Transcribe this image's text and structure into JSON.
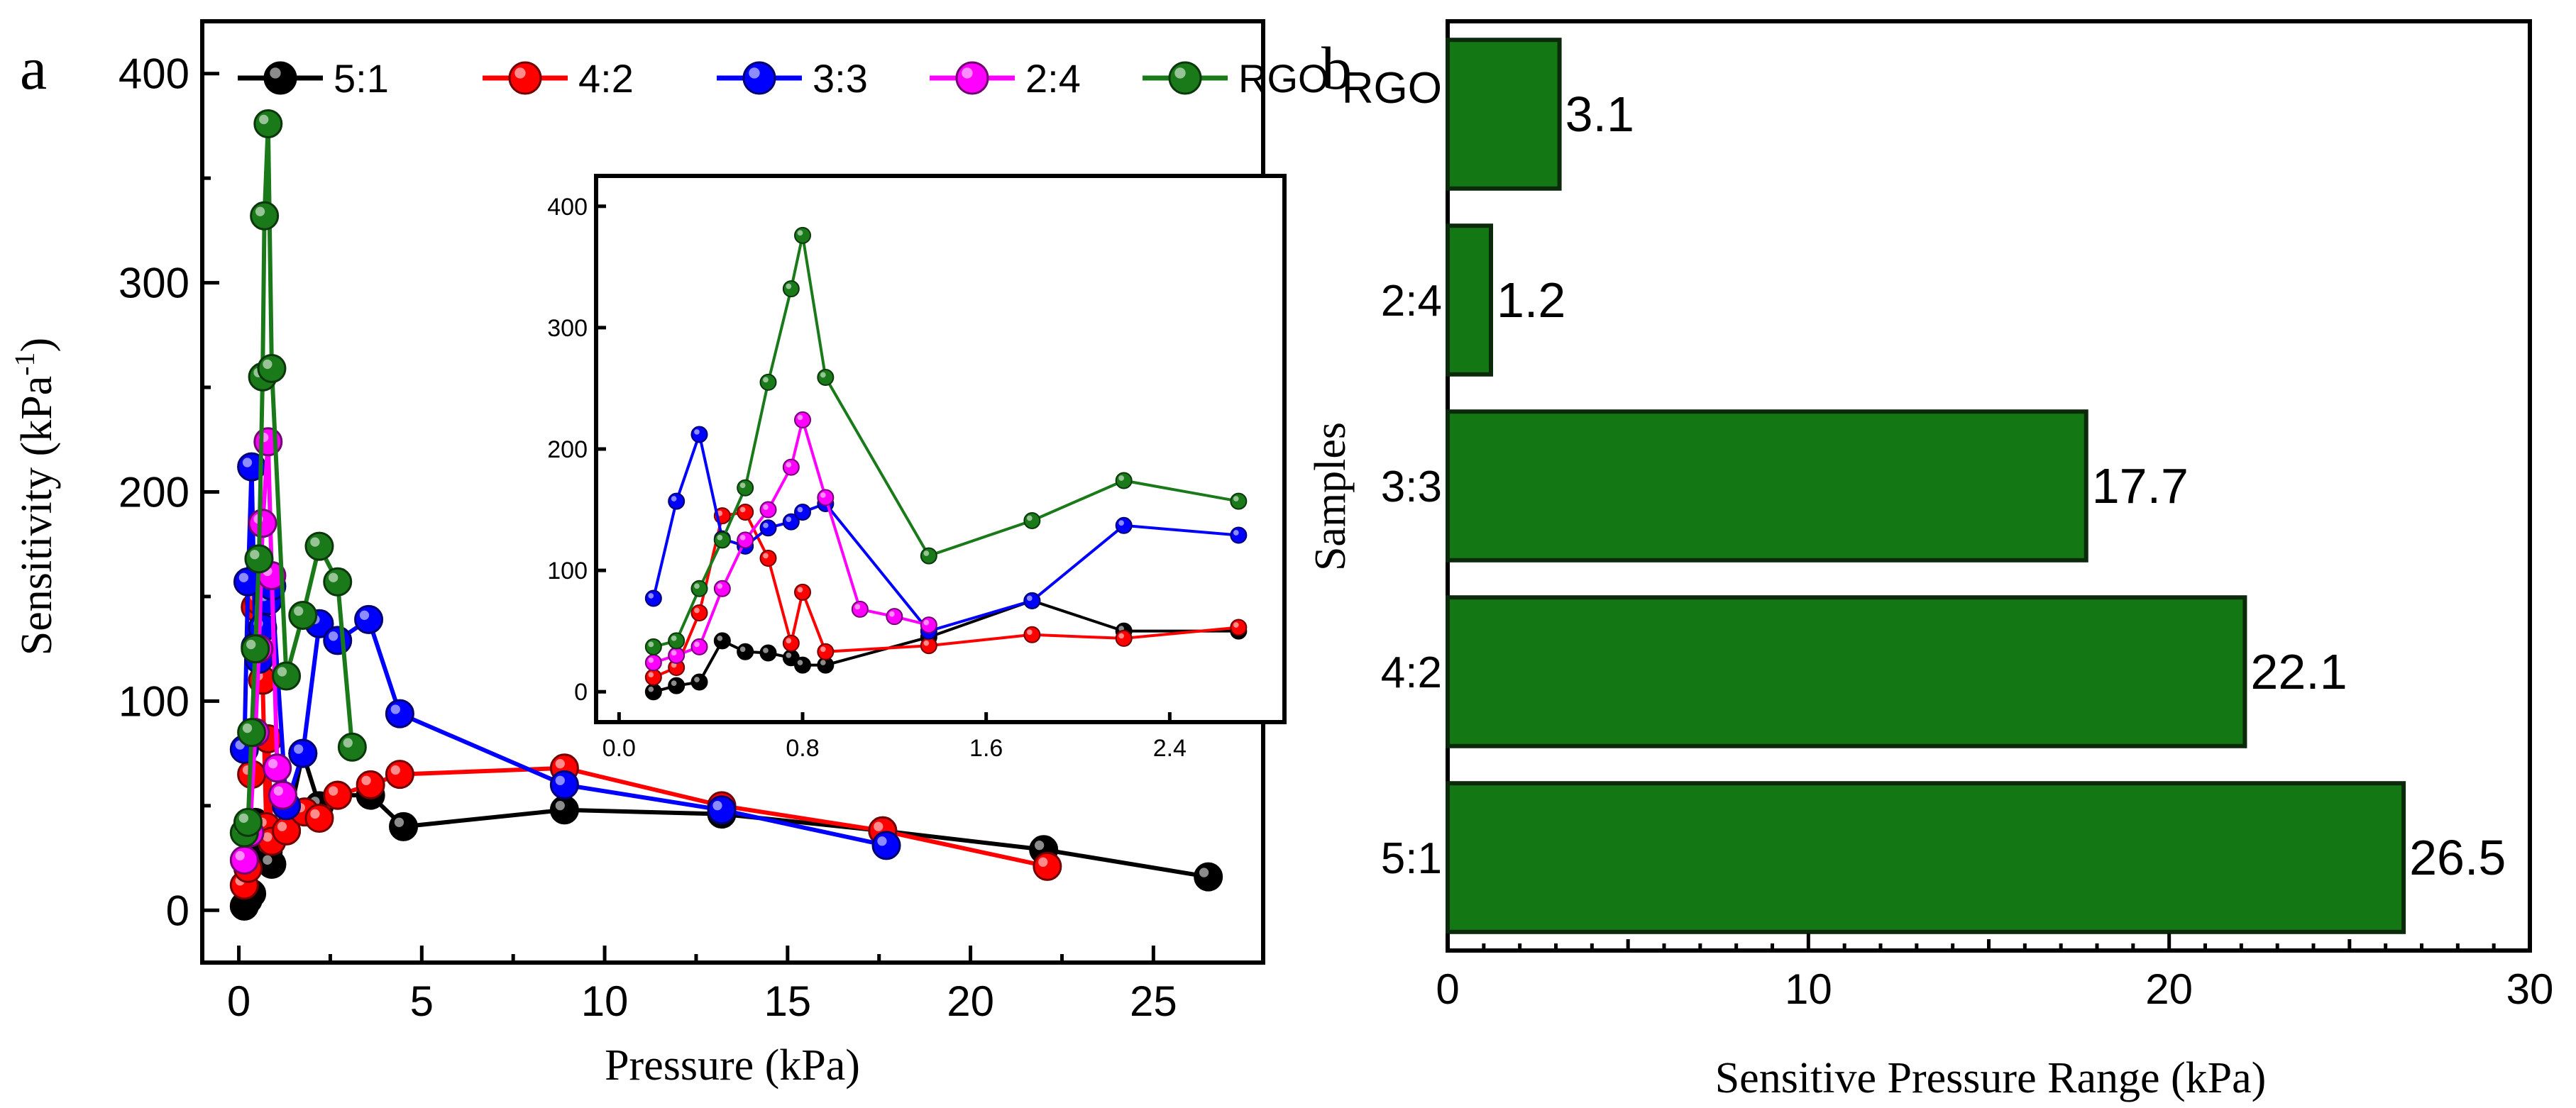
{
  "panels": {
    "a": "a",
    "b": "b"
  },
  "colors": {
    "5:1": "#000000",
    "4:2": "#ff0000",
    "3:3": "#0000ff",
    "2:4": "#ff00ff",
    "RGO": "#1a7a1a",
    "bar_fill": "#137813",
    "bar_stroke": "#0b2a0b"
  },
  "chart_data": [
    {
      "id": "a",
      "type": "line",
      "title": "",
      "xlabel": "Pressure (kPa)",
      "ylabel_main": "Sensitivity (kPa",
      "ylabel_sup": "-1",
      "ylabel_close": ")",
      "xlim": [
        -1,
        28
      ],
      "ylim": [
        -25,
        425
      ],
      "xticks": [
        0,
        5,
        10,
        15,
        20,
        25
      ],
      "xtick_labels": [
        "0",
        "5",
        "10",
        "15",
        "20",
        "25"
      ],
      "yticks": [
        0,
        100,
        200,
        300,
        400
      ],
      "ytick_labels": [
        "0",
        "100",
        "200",
        "300",
        "400"
      ],
      "legend": [
        "5:1",
        "4:2",
        "3:3",
        "2:4",
        "RGO"
      ],
      "series": [
        {
          "name": "5:1",
          "x": [
            0.15,
            0.25,
            0.35,
            0.45,
            0.6,
            0.7,
            0.8,
            0.9,
            1.3,
            1.75,
            2.2,
            2.7,
            3.6,
            4.5,
            8.9,
            13.2,
            17.6,
            22.0,
            26.5
          ],
          "y": [
            2,
            5,
            8,
            42,
            33,
            32,
            28,
            22,
            38,
            75,
            50,
            55,
            55,
            40,
            48,
            46,
            38,
            29,
            16
          ]
        },
        {
          "name": "4:2",
          "x": [
            0.15,
            0.25,
            0.35,
            0.45,
            0.55,
            0.65,
            0.75,
            0.8,
            0.9,
            1.3,
            1.8,
            2.2,
            2.7,
            3.6,
            4.4,
            8.9,
            13.2,
            17.6,
            22.1
          ],
          "y": [
            12,
            20,
            65,
            145,
            148,
            110,
            40,
            82,
            33,
            38,
            47,
            44,
            55,
            60,
            65,
            68,
            50,
            38,
            21
          ]
        },
        {
          "name": "3:3",
          "x": [
            0.15,
            0.25,
            0.35,
            0.45,
            0.55,
            0.65,
            0.8,
            0.9,
            1.3,
            1.75,
            2.2,
            2.7,
            3.55,
            4.4,
            8.9,
            13.2,
            17.7
          ],
          "y": [
            77,
            157,
            212,
            126,
            120,
            135,
            148,
            155,
            50,
            75,
            137,
            129,
            139,
            94,
            60,
            48,
            31
          ]
        },
        {
          "name": "2:4",
          "x": [
            0.15,
            0.3,
            0.45,
            0.55,
            0.65,
            0.8,
            0.9,
            1.05,
            1.2
          ],
          "y": [
            24,
            37,
            85,
            125,
            185,
            224,
            160,
            68,
            55
          ]
        },
        {
          "name": "RGO",
          "x": [
            0.15,
            0.25,
            0.35,
            0.45,
            0.55,
            0.65,
            0.7,
            0.8,
            0.9,
            1.3,
            1.75,
            2.2,
            2.7,
            3.1
          ],
          "y": [
            37,
            42,
            85,
            125,
            168,
            255,
            332,
            376,
            259,
            112,
            141,
            174,
            157,
            78
          ]
        }
      ]
    },
    {
      "id": "a-inset",
      "type": "line",
      "title": "",
      "xlim": [
        -0.1,
        2.9
      ],
      "ylim": [
        -25,
        425
      ],
      "xticks": [
        0.0,
        0.8,
        1.6,
        2.4
      ],
      "xtick_labels": [
        "0.0",
        "0.8",
        "1.6",
        "2.4"
      ],
      "yticks": [
        0,
        100,
        200,
        300,
        400
      ],
      "ytick_labels": [
        "0",
        "100",
        "200",
        "300",
        "400"
      ],
      "series": [
        {
          "name": "5:1",
          "x": [
            0.15,
            0.25,
            0.35,
            0.45,
            0.55,
            0.65,
            0.75,
            0.8,
            0.9,
            1.35,
            1.8,
            2.2,
            2.7
          ],
          "y": [
            0,
            5,
            8,
            42,
            33,
            32,
            28,
            22,
            22,
            45,
            75,
            50,
            50
          ]
        },
        {
          "name": "4:2",
          "x": [
            0.15,
            0.25,
            0.35,
            0.45,
            0.55,
            0.65,
            0.75,
            0.8,
            0.9,
            1.35,
            1.8,
            2.2,
            2.7
          ],
          "y": [
            12,
            20,
            65,
            145,
            148,
            110,
            40,
            82,
            33,
            38,
            47,
            44,
            53
          ]
        },
        {
          "name": "3:3",
          "x": [
            0.15,
            0.25,
            0.35,
            0.45,
            0.55,
            0.65,
            0.75,
            0.8,
            0.9,
            1.35,
            1.8,
            2.2,
            2.7
          ],
          "y": [
            77,
            157,
            212,
            126,
            120,
            135,
            140,
            148,
            155,
            50,
            75,
            137,
            129
          ]
        },
        {
          "name": "2:4",
          "x": [
            0.15,
            0.25,
            0.35,
            0.45,
            0.55,
            0.65,
            0.75,
            0.8,
            0.9,
            1.05,
            1.2,
            1.35
          ],
          "y": [
            24,
            30,
            37,
            85,
            125,
            150,
            185,
            224,
            160,
            68,
            62,
            55
          ]
        },
        {
          "name": "RGO",
          "x": [
            0.15,
            0.25,
            0.35,
            0.45,
            0.55,
            0.65,
            0.75,
            0.8,
            0.9,
            1.35,
            1.8,
            2.2,
            2.7
          ],
          "y": [
            37,
            42,
            85,
            125,
            168,
            255,
            332,
            376,
            259,
            112,
            141,
            174,
            157
          ]
        }
      ]
    },
    {
      "id": "b",
      "type": "bar",
      "orientation": "horizontal",
      "title": "",
      "xlabel": "Sensitive Pressure Range (kPa)",
      "ylabel": "Samples",
      "categories": [
        "RGO",
        "2:4",
        "3:3",
        "4:2",
        "5:1"
      ],
      "values": [
        3.1,
        1.2,
        17.7,
        22.1,
        26.5
      ],
      "value_labels": [
        "3.1",
        "1.2",
        "17.7",
        "22.1",
        "26.5"
      ],
      "xlim": [
        0,
        30
      ],
      "xticks": [
        0,
        10,
        20,
        30
      ],
      "xtick_labels": [
        "0",
        "10",
        "20",
        "30"
      ]
    }
  ]
}
